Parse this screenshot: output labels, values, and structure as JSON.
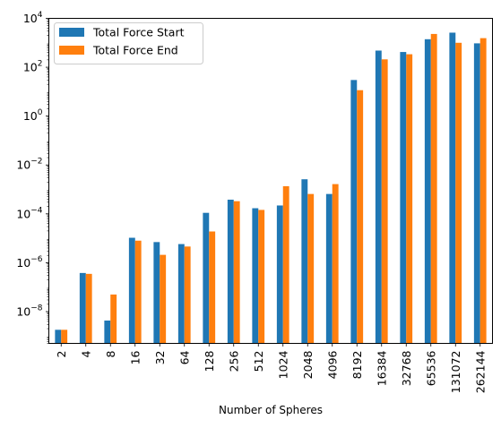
{
  "chart_data": {
    "type": "bar",
    "title": "",
    "xlabel": "Number of Spheres",
    "ylabel": "",
    "yscale": "log",
    "ylim": [
      5e-10,
      10000
    ],
    "grid": false,
    "legend_position": "top-left",
    "categories": [
      "2",
      "4",
      "8",
      "16",
      "32",
      "64",
      "128",
      "256",
      "512",
      "1024",
      "2048",
      "4096",
      "8192",
      "16384",
      "32768",
      "65536",
      "131072",
      "262144"
    ],
    "series": [
      {
        "name": "Total Force Start",
        "color": "#1f77b4",
        "values": [
          1.8e-09,
          3.8e-07,
          4.3e-09,
          1.05e-05,
          7e-06,
          5.8e-06,
          0.00011,
          0.00038,
          0.00017,
          0.00022,
          0.0026,
          0.00065,
          30,
          480,
          420,
          1400,
          2600,
          950
        ]
      },
      {
        "name": "Total Force End",
        "color": "#ff7f0e",
        "values": [
          1.8e-09,
          3.5e-07,
          5e-08,
          8e-06,
          2.1e-06,
          4.6e-06,
          1.9e-05,
          0.00033,
          0.000145,
          0.00135,
          0.00065,
          0.00165,
          11.5,
          210,
          340,
          2300,
          1000,
          1550
        ]
      }
    ],
    "y_ticks": [
      {
        "base": "10",
        "exp": "−8",
        "value": 1e-08
      },
      {
        "base": "10",
        "exp": "−6",
        "value": 1e-06
      },
      {
        "base": "10",
        "exp": "−4",
        "value": 0.0001
      },
      {
        "base": "10",
        "exp": "−2",
        "value": 0.01
      },
      {
        "base": "10",
        "exp": "0",
        "value": 1
      },
      {
        "base": "10",
        "exp": "2",
        "value": 100
      },
      {
        "base": "10",
        "exp": "4",
        "value": 10000
      }
    ]
  }
}
